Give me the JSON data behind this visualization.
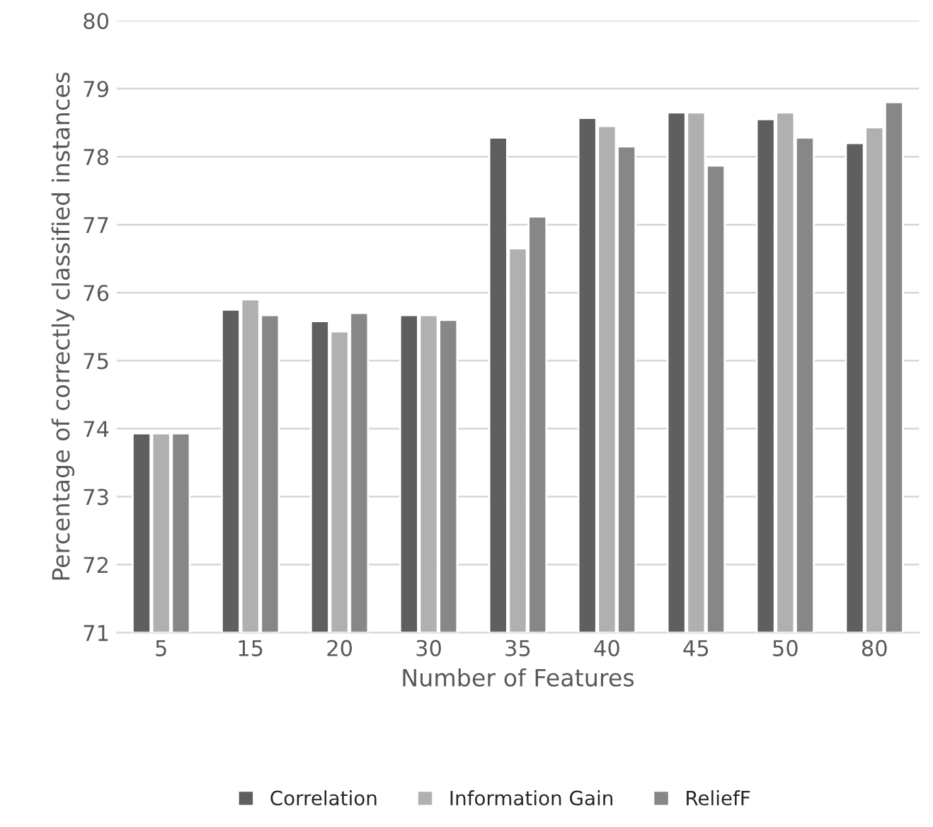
{
  "chart_data": {
    "type": "bar",
    "xlabel": "Number of Features",
    "ylabel": "Percentage of correctly classified instances",
    "categories": [
      "5",
      "15",
      "20",
      "30",
      "35",
      "40",
      "45",
      "50",
      "80"
    ],
    "series": [
      {
        "name": "Correlation",
        "color": "#5f5f5f",
        "values": [
          73.93,
          75.75,
          75.58,
          75.67,
          78.28,
          78.57,
          78.65,
          78.55,
          78.2
        ]
      },
      {
        "name": "Information Gain",
        "color": "#b0b0b0",
        "values": [
          73.93,
          75.9,
          75.43,
          75.67,
          76.65,
          78.45,
          78.65,
          78.65,
          78.43
        ]
      },
      {
        "name": "ReliefF",
        "color": "#878787",
        "values": [
          73.93,
          75.67,
          75.7,
          75.6,
          77.12,
          78.15,
          77.87,
          78.28,
          78.8
        ]
      }
    ],
    "ylim": [
      71,
      80
    ],
    "yticks": [
      71,
      72,
      73,
      74,
      75,
      76,
      77,
      78,
      79,
      80
    ],
    "grid": "y",
    "legend": "bottom"
  }
}
